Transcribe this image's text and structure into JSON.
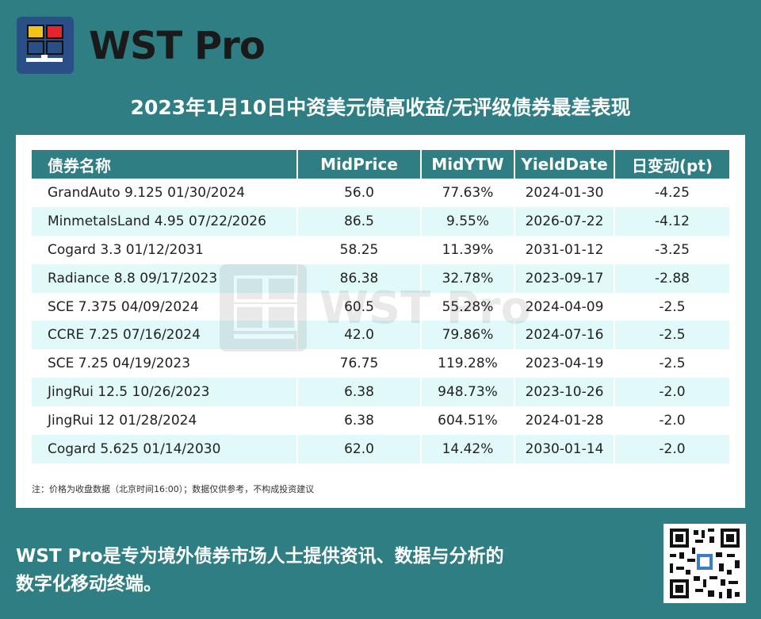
{
  "brand": {
    "name": "WST Pro"
  },
  "title": "2023年1月10日中资美元债高收益/无评级债券最差表现",
  "table": {
    "headers": [
      "债券名称",
      "MidPrice",
      "MidYTW",
      "YieldDate",
      "日变动(pt)"
    ],
    "rows": [
      [
        "GrandAuto 9.125 01/30/2024",
        "56.0",
        "77.63%",
        "2024-01-30",
        "-4.25"
      ],
      [
        "MinmetalsLand 4.95 07/22/2026",
        "86.5",
        "9.55%",
        "2026-07-22",
        "-4.12"
      ],
      [
        "Cogard 3.3 01/12/2031",
        "58.25",
        "11.39%",
        "2031-01-12",
        "-3.25"
      ],
      [
        "Radiance 8.8 09/17/2023",
        "86.38",
        "32.78%",
        "2023-09-17",
        "-2.88"
      ],
      [
        "SCE 7.375 04/09/2024",
        "60.5",
        "55.28%",
        "2024-04-09",
        "-2.5"
      ],
      [
        "CCRE 7.25 07/16/2024",
        "42.0",
        "79.86%",
        "2024-07-16",
        "-2.5"
      ],
      [
        "SCE 7.25 04/19/2023",
        "76.75",
        "119.28%",
        "2023-04-19",
        "-2.5"
      ],
      [
        "JingRui 12.5 10/26/2023",
        "6.38",
        "948.73%",
        "2023-10-26",
        "-2.0"
      ],
      [
        "JingRui 12 01/28/2024",
        "6.38",
        "604.51%",
        "2024-01-28",
        "-2.0"
      ],
      [
        "Cogard 5.625 01/14/2030",
        "62.0",
        "14.42%",
        "2030-01-14",
        "-2.0"
      ]
    ]
  },
  "note": "注：价格为收盘数据（北京时间16:00）；数据仅供参考，不构成投资建议",
  "watermark": "WST Pro",
  "footer": {
    "line1": "WST Pro是专为境外债券市场人士提供资讯、数据与分析的",
    "line2": "数字化移动终端。"
  },
  "colors": {
    "background": "#2e7e84",
    "row_alt": "#e2f9fa",
    "header_bg": "#2e7e84"
  },
  "icons": {
    "logo": "wst-logo-icon",
    "qr": "qr-code-icon"
  }
}
